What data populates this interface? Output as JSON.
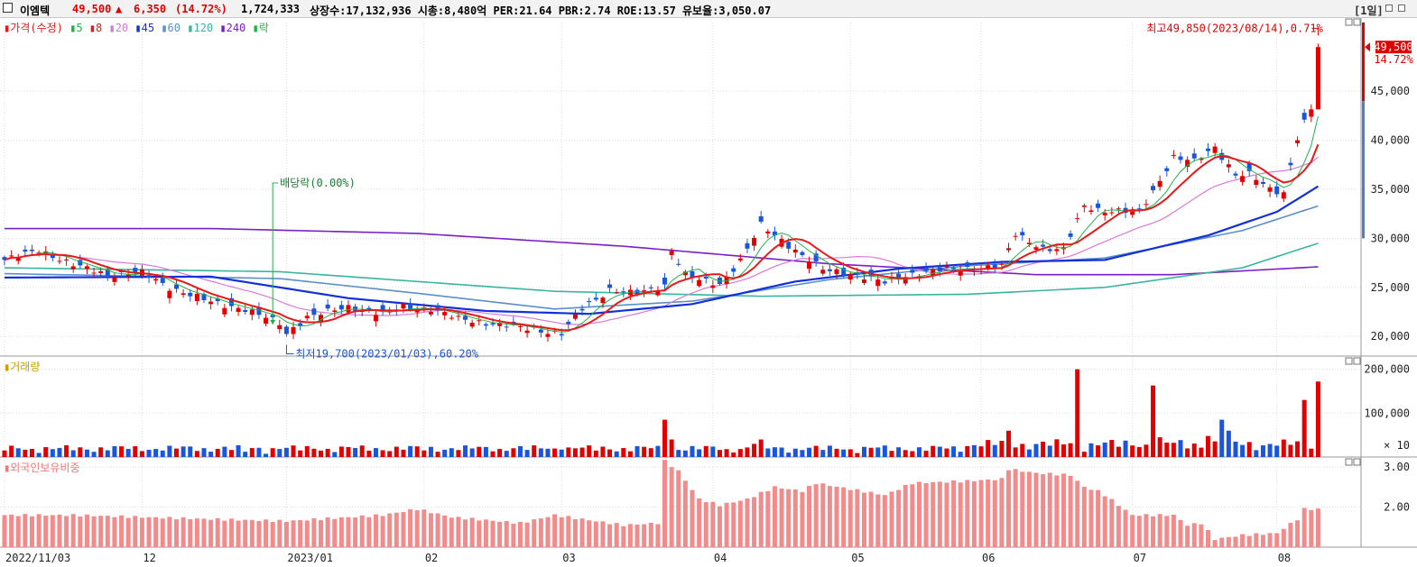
{
  "header": {
    "name": "이엠텍",
    "price": "49,500",
    "arrow": "▲",
    "change": "6,350",
    "change_pct": "(14.72%)",
    "volume": "1,724,333",
    "stats": "상장수:17,132,936 시총:8,480억 PER:21.64 PBR:2.74 ROE:13.57 유보율:3,050.07",
    "period": "[1일]"
  },
  "price_panel": {
    "legend_title": "가격(수정)",
    "ma": [
      {
        "label": "5",
        "color": "#21b14b"
      },
      {
        "label": "8",
        "color": "#e31a1c"
      },
      {
        "label": "20",
        "color": "#d87ad8"
      },
      {
        "label": "45",
        "color": "#1230d8"
      },
      {
        "label": "60",
        "color": "#5b8fc9"
      },
      {
        "label": "120",
        "color": "#39b4a0"
      },
      {
        "label": "240",
        "color": "#7b1fc4"
      }
    ],
    "dividend_legend": "락",
    "high_annotation": "최고49,850(2023/08/14),0.71%",
    "low_annotation": "최저19,700(2023/01/03),60.20%",
    "dividend_annotation": "배당락(0.00%)",
    "current_price_tag": "49,500",
    "current_pct_tag": "14.72%"
  },
  "volume_panel": {
    "legend_title": "거래량",
    "unit": "× 10"
  },
  "foreign_panel": {
    "legend_title": "외국인보유비중"
  },
  "x_axis": {
    "labels": [
      {
        "text": "2022/11/03",
        "i": 0
      },
      {
        "text": "12",
        "i": 20
      },
      {
        "text": "2023/01",
        "i": 41
      },
      {
        "text": "02",
        "i": 61
      },
      {
        "text": "03",
        "i": 81
      },
      {
        "text": "04",
        "i": 103
      },
      {
        "text": "05",
        "i": 123
      },
      {
        "text": "06",
        "i": 142
      },
      {
        "text": "07",
        "i": 164
      },
      {
        "text": "08",
        "i": 185
      }
    ]
  },
  "chart_data": [
    {
      "type": "candlestick",
      "title": "이엠텍 가격(수정) 일봉",
      "y_ticks": [
        20000,
        25000,
        30000,
        35000,
        40000,
        45000
      ],
      "y_tick_labels": [
        "20,000",
        "25,000",
        "30,000",
        "35,000",
        "40,000",
        "45,000"
      ],
      "ylim": [
        18000,
        52000
      ],
      "high": {
        "value": 49850,
        "date": "2023/08/14"
      },
      "low": {
        "value": 19700,
        "date": "2023/01/03"
      },
      "anchors": [
        [
          0,
          27800
        ],
        [
          5,
          28800
        ],
        [
          10,
          27300
        ],
        [
          15,
          26300
        ],
        [
          20,
          26500
        ],
        [
          24,
          25000
        ],
        [
          30,
          23500
        ],
        [
          35,
          22800
        ],
        [
          40,
          21300
        ],
        [
          41,
          20300
        ],
        [
          44,
          22000
        ],
        [
          50,
          23000
        ],
        [
          55,
          22300
        ],
        [
          58,
          23000
        ],
        [
          62,
          22800
        ],
        [
          66,
          21800
        ],
        [
          71,
          21300
        ],
        [
          76,
          20800
        ],
        [
          81,
          20300
        ],
        [
          84,
          22800
        ],
        [
          88,
          24800
        ],
        [
          92,
          24300
        ],
        [
          96,
          25200
        ],
        [
          97,
          28800
        ],
        [
          99,
          26300
        ],
        [
          101,
          25700
        ],
        [
          104,
          25300
        ],
        [
          107,
          27800
        ],
        [
          110,
          31300
        ],
        [
          112,
          30300
        ],
        [
          116,
          28300
        ],
        [
          119,
          26800
        ],
        [
          124,
          26300
        ],
        [
          128,
          25500
        ],
        [
          132,
          26400
        ],
        [
          136,
          26800
        ],
        [
          140,
          26900
        ],
        [
          145,
          27200
        ],
        [
          147,
          30400
        ],
        [
          151,
          29000
        ],
        [
          154,
          28800
        ],
        [
          157,
          33300
        ],
        [
          160,
          32800
        ],
        [
          165,
          32700
        ],
        [
          167,
          34800
        ],
        [
          170,
          38300
        ],
        [
          173,
          37800
        ],
        [
          176,
          39300
        ],
        [
          179,
          36500
        ],
        [
          181,
          36500
        ],
        [
          184,
          35000
        ],
        [
          186,
          34700
        ],
        [
          188,
          40300
        ],
        [
          189,
          41800
        ],
        [
          190,
          43150
        ],
        [
          191,
          49500
        ]
      ],
      "ma_series": [
        {
          "name": "240",
          "color": "#7b1fc4",
          "anchors": [
            [
              0,
              31000
            ],
            [
              30,
              31000
            ],
            [
              60,
              30500
            ],
            [
              90,
              29200
            ],
            [
              120,
              27400
            ],
            [
              150,
              26300
            ],
            [
              170,
              26300
            ],
            [
              191,
              27100
            ]
          ]
        },
        {
          "name": "120",
          "color": "#39b4a0",
          "anchors": [
            [
              0,
              27000
            ],
            [
              40,
              26600
            ],
            [
              80,
              24600
            ],
            [
              110,
              24100
            ],
            [
              140,
              24300
            ],
            [
              160,
              25000
            ],
            [
              180,
              27000
            ],
            [
              191,
              29500
            ]
          ]
        },
        {
          "name": "60",
          "color": "#5b8fc9",
          "anchors": [
            [
              0,
              26400
            ],
            [
              40,
              25900
            ],
            [
              60,
              24400
            ],
            [
              80,
              22800
            ],
            [
              100,
              23600
            ],
            [
              120,
              25800
            ],
            [
              140,
              27200
            ],
            [
              160,
              28000
            ],
            [
              180,
              30800
            ],
            [
              191,
              33300
            ]
          ]
        },
        {
          "name": "45",
          "color": "#1230d8",
          "anchors": [
            [
              0,
              26000
            ],
            [
              30,
              26100
            ],
            [
              50,
              23900
            ],
            [
              70,
              22600
            ],
            [
              85,
              22300
            ],
            [
              100,
              23300
            ],
            [
              115,
              25600
            ],
            [
              130,
              26900
            ],
            [
              145,
              27600
            ],
            [
              160,
              27800
            ],
            [
              175,
              30300
            ],
            [
              185,
              32700
            ],
            [
              191,
              35300
            ]
          ]
        }
      ]
    },
    {
      "type": "bar",
      "title": "거래량",
      "unit": "×10",
      "y_ticks": [
        100000,
        200000
      ],
      "y_tick_labels": [
        "100,000",
        "200,000"
      ],
      "ylim": [
        0,
        230000
      ],
      "spikes": [
        [
          7,
          18000
        ],
        [
          35,
          12000
        ],
        [
          61,
          15000
        ],
        [
          71,
          13000
        ],
        [
          81,
          17000
        ],
        [
          96,
          85000
        ],
        [
          97,
          40000
        ],
        [
          105,
          18000
        ],
        [
          109,
          30000
        ],
        [
          110,
          40000
        ],
        [
          146,
          60000
        ],
        [
          156,
          200000
        ],
        [
          167,
          163000
        ],
        [
          168,
          45000
        ],
        [
          175,
          48000
        ],
        [
          177,
          85000
        ],
        [
          178,
          60000
        ],
        [
          189,
          130000
        ],
        [
          191,
          172000
        ]
      ]
    },
    {
      "type": "bar",
      "title": "외국인보유비중",
      "y_ticks": [
        2.0,
        3.0
      ],
      "y_tick_labels": [
        "2.00",
        "3.00"
      ],
      "ylim": [
        1.0,
        3.25
      ],
      "anchors": [
        [
          0,
          1.8
        ],
        [
          10,
          1.8
        ],
        [
          20,
          1.75
        ],
        [
          30,
          1.7
        ],
        [
          41,
          1.65
        ],
        [
          55,
          1.8
        ],
        [
          60,
          1.95
        ],
        [
          65,
          1.75
        ],
        [
          75,
          1.6
        ],
        [
          80,
          1.8
        ],
        [
          90,
          1.55
        ],
        [
          95,
          1.6
        ],
        [
          96,
          3.15
        ],
        [
          98,
          2.9
        ],
        [
          101,
          2.2
        ],
        [
          104,
          2.05
        ],
        [
          108,
          2.2
        ],
        [
          112,
          2.5
        ],
        [
          116,
          2.4
        ],
        [
          118,
          2.6
        ],
        [
          123,
          2.45
        ],
        [
          128,
          2.3
        ],
        [
          132,
          2.6
        ],
        [
          140,
          2.65
        ],
        [
          145,
          2.7
        ],
        [
          146,
          2.95
        ],
        [
          150,
          2.85
        ],
        [
          155,
          2.8
        ],
        [
          157,
          2.5
        ],
        [
          159,
          2.4
        ],
        [
          160,
          2.3
        ],
        [
          164,
          1.8
        ],
        [
          170,
          1.8
        ],
        [
          172,
          1.55
        ],
        [
          174,
          1.6
        ],
        [
          176,
          1.2
        ],
        [
          180,
          1.3
        ],
        [
          185,
          1.35
        ],
        [
          188,
          1.7
        ],
        [
          189,
          1.95
        ],
        [
          191,
          1.95
        ]
      ]
    }
  ]
}
